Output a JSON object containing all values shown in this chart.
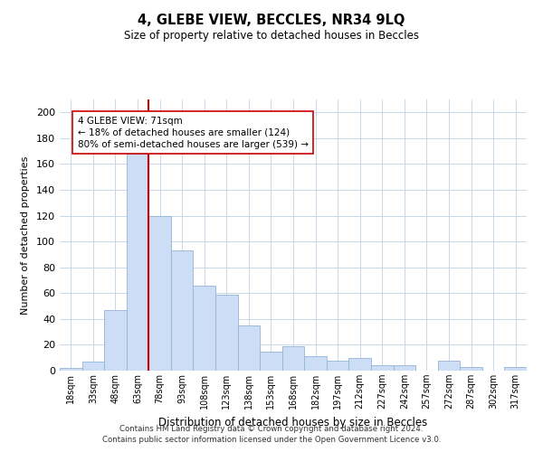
{
  "title": "4, GLEBE VIEW, BECCLES, NR34 9LQ",
  "subtitle": "Size of property relative to detached houses in Beccles",
  "xlabel": "Distribution of detached houses by size in Beccles",
  "ylabel": "Number of detached properties",
  "bar_labels": [
    "18sqm",
    "33sqm",
    "48sqm",
    "63sqm",
    "78sqm",
    "93sqm",
    "108sqm",
    "123sqm",
    "138sqm",
    "153sqm",
    "168sqm",
    "182sqm",
    "197sqm",
    "212sqm",
    "227sqm",
    "242sqm",
    "257sqm",
    "272sqm",
    "287sqm",
    "302sqm",
    "317sqm"
  ],
  "bar_values": [
    2,
    7,
    47,
    168,
    120,
    93,
    66,
    59,
    35,
    15,
    19,
    11,
    8,
    10,
    4,
    4,
    0,
    8,
    3,
    0,
    3
  ],
  "bar_color": "#ccddf5",
  "bar_edge_color": "#92b4d4",
  "vline_color": "#cc0000",
  "vline_x_index": 3.5,
  "annotation_title": "4 GLEBE VIEW: 71sqm",
  "annotation_line1": "← 18% of detached houses are smaller (124)",
  "annotation_line2": "80% of semi-detached houses are larger (539) →",
  "annotation_box_edge": "#cc0000",
  "ylim": [
    0,
    210
  ],
  "yticks": [
    0,
    20,
    40,
    60,
    80,
    100,
    120,
    140,
    160,
    180,
    200
  ],
  "footnote1": "Contains HM Land Registry data © Crown copyright and database right 2024.",
  "footnote2": "Contains public sector information licensed under the Open Government Licence v3.0.",
  "bg_color": "#ffffff",
  "grid_color": "#c8d8ec"
}
